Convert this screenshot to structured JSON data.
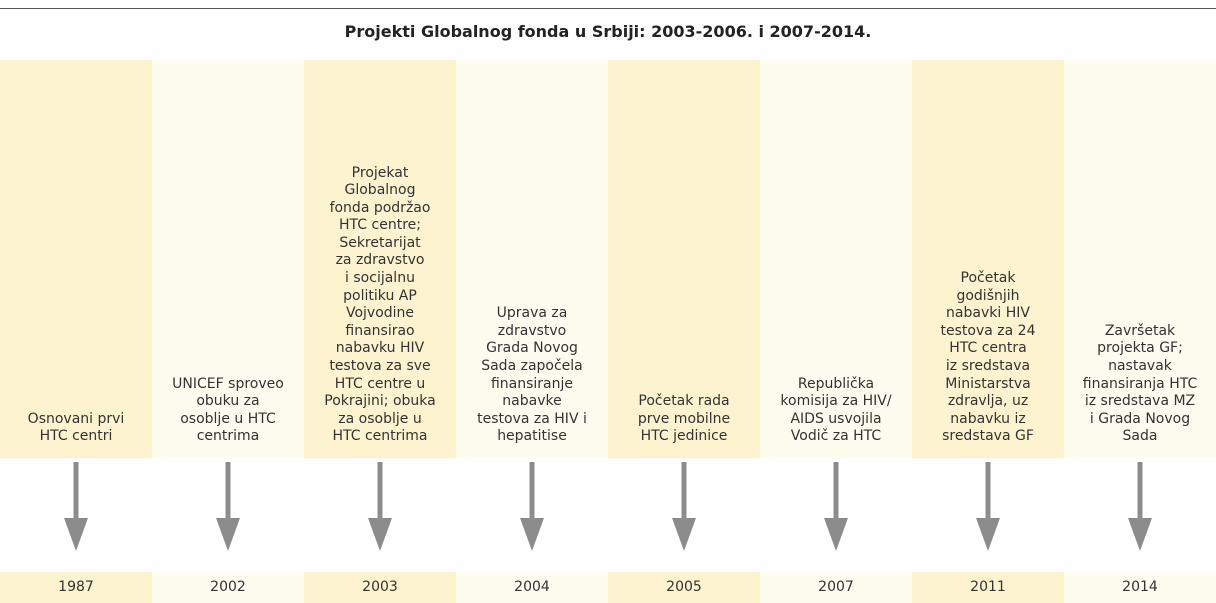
{
  "title": "Projekti Globalnog fonda u Srbiji: 2003-2006. i 2007-2014.",
  "events": [
    {
      "lines": [
        "Osnovani prvi",
        "HTC centri"
      ],
      "year": "1987"
    },
    {
      "lines": [
        "UNICEF sproveo",
        "obuku za",
        "osoblje u HTC",
        "centrima"
      ],
      "year": "2002"
    },
    {
      "lines": [
        "Projekat",
        "Globalnog",
        "fonda podržao",
        "HTC centre;",
        "Sekretarijat",
        "za zdravstvo",
        "i socijalnu",
        "politiku AP",
        "Vojvodine",
        "finansirao",
        "nabavku HIV",
        "testova za sve",
        "HTC centre u",
        "Pokrajini; obuka",
        "za osoblje u",
        "HTC centrima"
      ],
      "year": "2003"
    },
    {
      "lines": [
        "Uprava za",
        "zdravstvo",
        "Grada Novog",
        "Sada započela",
        "finansiranje",
        "nabavke",
        "testova za HIV i",
        "hepatitise"
      ],
      "year": "2004"
    },
    {
      "lines": [
        "Početak rada",
        "prve mobilne",
        "HTC jedinice"
      ],
      "year": "2005"
    },
    {
      "lines": [
        "Republička",
        "komisija za HIV/",
        "AIDS usvojila",
        "Vodič za HTC"
      ],
      "year": "2007"
    },
    {
      "lines": [
        "Početak",
        "godišnjih",
        "nabavki HIV",
        "testova za 24",
        "HTC centra",
        "iz sredstava",
        "Ministarstva",
        "zdravlja, uz",
        "nabavku iz",
        "sredstava GF"
      ],
      "year": "2011"
    },
    {
      "lines": [
        "Završetak",
        "projekta GF;",
        "nastavak",
        "finansiranja HTC",
        "iz sredstava MZ",
        "i Grada Novog",
        "Sada"
      ],
      "year": "2014"
    }
  ]
}
